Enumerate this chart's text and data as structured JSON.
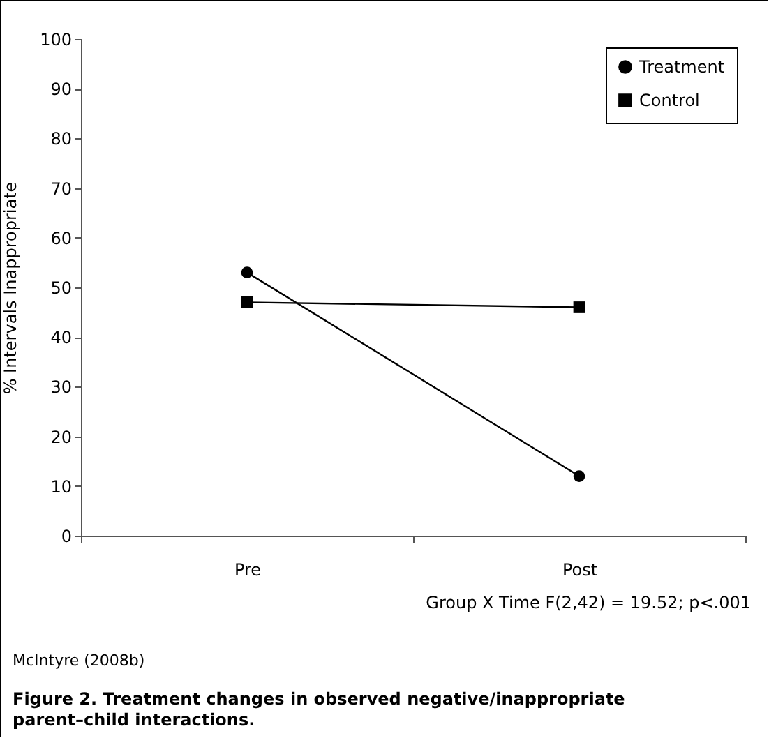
{
  "chart_data": {
    "type": "line",
    "title": "Figure 2. Treatment changes in observed negative/inappropriate parent–child interactions.",
    "ylabel": "% Intervals Inappropriate",
    "categories": [
      "Pre",
      "Post"
    ],
    "series": [
      {
        "name": "Treatment",
        "color": "#000000",
        "marker": "circle",
        "values": [
          53,
          12
        ]
      },
      {
        "name": "Control",
        "color": "#000000",
        "marker": "square",
        "values": [
          47,
          46
        ]
      }
    ],
    "ylim": [
      0,
      100
    ],
    "yticks": [
      0,
      10,
      20,
      30,
      40,
      50,
      60,
      70,
      80,
      90,
      100
    ],
    "grid": false,
    "legend": "top right",
    "line_style": "solid",
    "annotations": [
      "Group X Time F(2,42) = 19.52; p<.001",
      "McIntyre (2008b)"
    ]
  }
}
